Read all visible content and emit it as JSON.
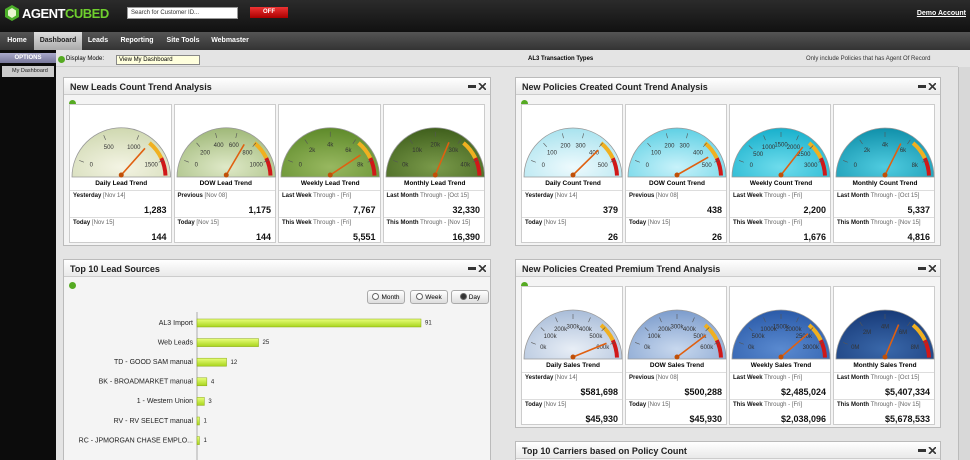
{
  "header": {
    "logo": [
      "AGENT",
      "CUBED"
    ],
    "search_placeholder": "Search for Customer ID...",
    "toggle": "OFF",
    "account": "Demo Account"
  },
  "nav": [
    "Home",
    "Dashboard",
    "Leads",
    "Reporting",
    "Site Tools",
    "Webmaster"
  ],
  "sidebar": {
    "title": "OPTIONS",
    "items": [
      "My Dashboard"
    ]
  },
  "toolbar": {
    "display_mode_label": "Display Mode:",
    "display_mode": "View My Dashboard",
    "transaction_types": "AL3 Transaction Types",
    "filter": "Only include Policies that has Agent Of Record"
  },
  "panels": [
    {
      "title": "New Leads Count Trend Analysis",
      "gauges": [
        {
          "title": "Daily Lead Trend",
          "ticks": [
            "0",
            "500",
            "1000",
            "1500"
          ],
          "rows": [
            {
              "label": "Yesterday",
              "date": "[Nov 14]",
              "value": "1,283"
            },
            {
              "label": "Today",
              "date": "[Nov 15]",
              "value": "144"
            }
          ]
        },
        {
          "title": "DOW Lead Trend",
          "ticks": [
            "0",
            "200",
            "400",
            "600",
            "800",
            "1000"
          ],
          "rows": [
            {
              "label": "Previous",
              "date": "[Nov 08]",
              "value": "1,175"
            },
            {
              "label": "Today",
              "date": "[Nov 15]",
              "value": "144"
            }
          ]
        },
        {
          "title": "Weekly Lead Trend",
          "ticks": [
            "0",
            "2k",
            "4k",
            "6k",
            "8k"
          ],
          "rows": [
            {
              "label": "Last Week",
              "date": "Through - [Fri]",
              "value": "7,767"
            },
            {
              "label": "This Week",
              "date": "Through - [Fri]",
              "value": "5,551"
            }
          ]
        },
        {
          "title": "Monthly Lead Trend",
          "ticks": [
            "0k",
            "10k",
            "20k",
            "30k",
            "40k"
          ],
          "rows": [
            {
              "label": "Last Month",
              "date": "Through - [Oct 15]",
              "value": "32,330"
            },
            {
              "label": "This Month",
              "date": "Through - [Nov 15]",
              "value": "16,390"
            }
          ]
        }
      ]
    },
    {
      "title": "New Policies Created Count Trend Analysis",
      "gauges": [
        {
          "title": "Daily Count Trend",
          "ticks": [
            "0",
            "100",
            "200",
            "300",
            "400",
            "500"
          ],
          "rows": [
            {
              "label": "Yesterday",
              "date": "[Nov 14]",
              "value": "379"
            },
            {
              "label": "Today",
              "date": "[Nov 15]",
              "value": "26"
            }
          ]
        },
        {
          "title": "DOW Count Trend",
          "ticks": [
            "0",
            "100",
            "200",
            "300",
            "400",
            "500"
          ],
          "rows": [
            {
              "label": "Previous",
              "date": "[Nov 08]",
              "value": "438"
            },
            {
              "label": "Today",
              "date": "[Nov 15]",
              "value": "26"
            }
          ]
        },
        {
          "title": "Weekly Count Trend",
          "ticks": [
            "0",
            "500",
            "1000",
            "1500",
            "2000",
            "2500",
            "3000"
          ],
          "rows": [
            {
              "label": "Last Week",
              "date": "Through - [Fri]",
              "value": "2,200"
            },
            {
              "label": "This Week",
              "date": "Through - [Fri]",
              "value": "1,676"
            }
          ]
        },
        {
          "title": "Monthly Count Trend",
          "ticks": [
            "0",
            "2k",
            "4k",
            "6k",
            "8k"
          ],
          "rows": [
            {
              "label": "Last Month",
              "date": "Through - [Oct 15]",
              "value": "5,337"
            },
            {
              "label": "This Month",
              "date": "Through - [Nov 15]",
              "value": "4,816"
            }
          ]
        }
      ]
    },
    {
      "title": "Top 10 Lead Sources",
      "periods": [
        "Month",
        "Week",
        "Day"
      ],
      "categories": [
        "AL3 Import",
        "Web Leads",
        "TD - GOOD SAM manual",
        "BK - BROADMARKET manual",
        "1 - Western Union",
        "RV - RV SELECT manual",
        "RC - JPMORGAN CHASE EMPLO..."
      ],
      "values": [
        91,
        25,
        12,
        4,
        3,
        1,
        1
      ]
    },
    {
      "title": "New Policies Created Premium Trend Analysis",
      "gauges": [
        {
          "title": "Daily Sales Trend",
          "ticks": [
            "0k",
            "100k",
            "200k",
            "300k",
            "400k",
            "500k",
            "600k"
          ],
          "rows": [
            {
              "label": "Yesterday",
              "date": "[Nov 14]",
              "value": "$581,698"
            },
            {
              "label": "Today",
              "date": "[Nov 15]",
              "value": "$45,930"
            }
          ]
        },
        {
          "title": "DOW Sales Trend",
          "ticks": [
            "0k",
            "100k",
            "200k",
            "300k",
            "400k",
            "500k",
            "600k"
          ],
          "rows": [
            {
              "label": "Previous",
              "date": "[Nov 08]",
              "value": "$500,288"
            },
            {
              "label": "Today",
              "date": "[Nov 15]",
              "value": "$45,930"
            }
          ]
        },
        {
          "title": "Weekly Sales Trend",
          "ticks": [
            "0k",
            "500k",
            "1000k",
            "1500k",
            "2000k",
            "2500k",
            "3000k"
          ],
          "rows": [
            {
              "label": "Last Week",
              "date": "Through - [Fri]",
              "value": "$2,485,024"
            },
            {
              "label": "This Week",
              "date": "Through - [Fri]",
              "value": "$2,038,096"
            }
          ]
        },
        {
          "title": "Monthly Sales Trend",
          "ticks": [
            "0M",
            "2M",
            "4M",
            "6M",
            "8M"
          ],
          "rows": [
            {
              "label": "Last Month",
              "date": "Through - [Oct 15]",
              "value": "$5,407,334"
            },
            {
              "label": "This Month",
              "date": "Through - [Nov 15]",
              "value": "$5,678,533"
            }
          ]
        }
      ]
    },
    {
      "title": "Top 10 Carriers based on Policy Count"
    }
  ]
}
